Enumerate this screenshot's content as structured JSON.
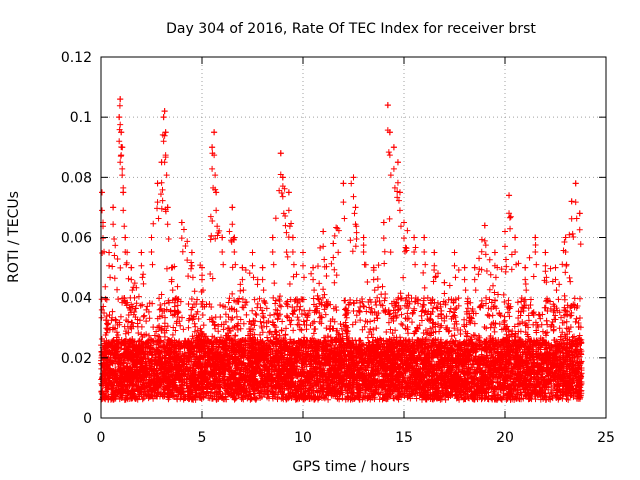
{
  "chart_data": {
    "type": "scatter",
    "title": "Day 304 of 2016, Rate Of TEC Index for receiver brst",
    "xlabel": "GPS time / hours",
    "ylabel": "ROTI / TECUs",
    "xlim": [
      0,
      25
    ],
    "ylim": [
      0,
      0.12
    ],
    "xticks": [
      0,
      5,
      10,
      15,
      20,
      25
    ],
    "yticks": [
      0,
      0.02,
      0.04,
      0.06,
      0.08,
      0.1,
      0.12
    ],
    "xtick_labels": [
      "0",
      "5",
      "10",
      "15",
      "20",
      "25"
    ],
    "ytick_labels": [
      "0",
      "0.02",
      "0.04",
      "0.06",
      "0.08",
      "0.1",
      "0.12"
    ],
    "grid": true,
    "marker": "+",
    "color": "#ff0000",
    "series": [
      {
        "name": "ROTI",
        "description_points_note": "dense point cloud approximated; notable peaks listed",
        "x": [
          0.05,
          0.1,
          0.4,
          0.6,
          0.9,
          0.95,
          1.0,
          1.05,
          1.1,
          1.2,
          1.5,
          2.0,
          2.5,
          2.8,
          3.0,
          3.1,
          3.15,
          3.2,
          3.3,
          3.5,
          4.0,
          4.5,
          5.0,
          5.5,
          5.6,
          5.7,
          6.0,
          6.5,
          6.6,
          7.0,
          7.5,
          8.0,
          8.5,
          8.9,
          9.0,
          9.3,
          9.5,
          10.0,
          10.5,
          11.0,
          11.5,
          12.0,
          12.5,
          12.6,
          13.0,
          13.5,
          14.0,
          14.2,
          14.3,
          14.5,
          14.7,
          14.8,
          15.0,
          15.5,
          16.0,
          16.5,
          17.0,
          17.5,
          18.0,
          18.5,
          19.0,
          19.5,
          20.0,
          20.2,
          20.5,
          21.0,
          21.5,
          22.0,
          22.5,
          23.0,
          23.3,
          23.5,
          23.7
        ],
        "y": [
          0.075,
          0.065,
          0.055,
          0.07,
          0.1,
          0.106,
          0.095,
          0.09,
          0.075,
          0.06,
          0.05,
          0.055,
          0.06,
          0.078,
          0.085,
          0.1,
          0.102,
          0.095,
          0.07,
          0.05,
          0.065,
          0.055,
          0.05,
          0.09,
          0.095,
          0.075,
          0.06,
          0.07,
          0.06,
          0.05,
          0.055,
          0.05,
          0.06,
          0.088,
          0.08,
          0.075,
          0.06,
          0.055,
          0.05,
          0.062,
          0.058,
          0.078,
          0.08,
          0.07,
          0.06,
          0.05,
          0.065,
          0.104,
          0.095,
          0.09,
          0.085,
          0.075,
          0.065,
          0.06,
          0.06,
          0.055,
          0.045,
          0.055,
          0.05,
          0.05,
          0.064,
          0.055,
          0.062,
          0.074,
          0.06,
          0.05,
          0.06,
          0.055,
          0.05,
          0.06,
          0.072,
          0.078,
          0.068
        ]
      }
    ]
  }
}
